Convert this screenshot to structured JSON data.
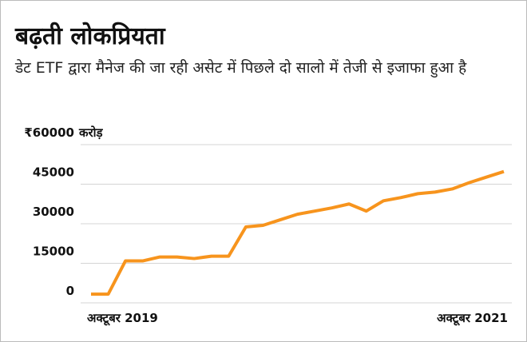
{
  "chart_data": {
    "type": "line",
    "title": "बढ़ती लोकप्रियता",
    "subtitle": "डेट ETF द्वारा मैनेज की जा रही असेट में पिछले दो सालो में तेजी से इजाफा हुआ है",
    "y_unit": "करोड़",
    "categories": [
      "अक्टूबर 2019",
      null,
      null,
      null,
      null,
      null,
      null,
      null,
      null,
      null,
      null,
      null,
      null,
      null,
      null,
      null,
      null,
      null,
      null,
      null,
      null,
      null,
      null,
      null,
      "अक्टूबर 2021"
    ],
    "series": [
      {
        "color": "#f7941d",
        "values": [
          3300,
          3300,
          15900,
          15900,
          17400,
          17400,
          16800,
          17700,
          17700,
          28800,
          29400,
          31500,
          33600,
          34800,
          36000,
          37500,
          34800,
          38700,
          39900,
          41400,
          42000,
          43200,
          45600,
          47700,
          49800
        ]
      }
    ],
    "ylim": [
      0,
      60000
    ],
    "yticks": [
      0,
      15000,
      30000,
      45000,
      {
        "value": 60000,
        "label": "₹60000"
      }
    ],
    "grid": true
  }
}
